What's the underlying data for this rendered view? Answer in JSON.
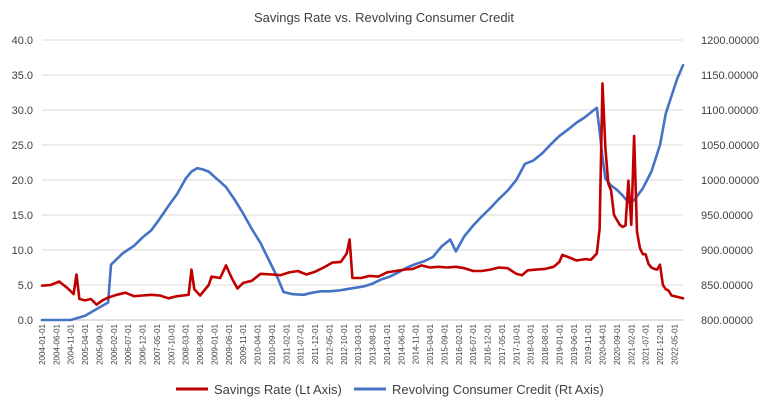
{
  "chart_data": {
    "type": "line",
    "title": "Savings Rate vs. Revolving Consumer Credit",
    "left_axis": {
      "range": [
        0,
        40
      ],
      "ticks": [
        "0.0",
        "5.0",
        "10.0",
        "15.0",
        "20.0",
        "25.0",
        "30.0",
        "35.0",
        "40.0"
      ]
    },
    "right_axis": {
      "range": [
        800,
        1200
      ],
      "ticks": [
        "800.00000",
        "850.00000",
        "900.00000",
        "950.00000",
        "1000.00000",
        "1050.00000",
        "1100.00000",
        "1150.00000",
        "1200.00000"
      ]
    },
    "x_ticks": [
      "2004-01-01",
      "2004-06-01",
      "2004-11-01",
      "2005-04-01",
      "2005-09-01",
      "2006-02-01",
      "2006-07-01",
      "2006-12-01",
      "2007-05-01",
      "2007-10-01",
      "2008-03-01",
      "2008-08-01",
      "2009-01-01",
      "2009-06-01",
      "2009-11-01",
      "2010-04-01",
      "2010-09-01",
      "2011-02-01",
      "2011-07-01",
      "2011-12-01",
      "2012-05-01",
      "2012-10-01",
      "2013-03-01",
      "2013-08-01",
      "2014-01-01",
      "2014-06-01",
      "2014-11-01",
      "2015-04-01",
      "2015-09-01",
      "2016-02-01",
      "2016-07-01",
      "2016-12-01",
      "2017-05-01",
      "2017-10-01",
      "2018-03-01",
      "2018-08-01",
      "2019-01-01",
      "2019-06-01",
      "2019-11-01",
      "2020-04-01",
      "2020-09-01",
      "2021-02-01",
      "2021-07-01",
      "2021-12-01",
      "2022-05-01"
    ],
    "x_start": "2004-01",
    "x_end": "2022-08",
    "grid": "horizontal",
    "legend_position": "bottom",
    "series": [
      {
        "name": "Savings Rate (Lt Axis)",
        "axis": "left",
        "color": "#C00000",
        "points": [
          [
            "2004-01",
            4.9
          ],
          [
            "2004-04",
            5.0
          ],
          [
            "2004-07",
            5.5
          ],
          [
            "2004-10",
            4.5
          ],
          [
            "2004-12",
            3.7
          ],
          [
            "2005-01",
            6.5
          ],
          [
            "2005-02",
            3.0
          ],
          [
            "2005-04",
            2.8
          ],
          [
            "2005-06",
            3.0
          ],
          [
            "2005-08",
            2.2
          ],
          [
            "2005-10",
            2.8
          ],
          [
            "2005-12",
            3.2
          ],
          [
            "2006-03",
            3.6
          ],
          [
            "2006-06",
            3.9
          ],
          [
            "2006-09",
            3.4
          ],
          [
            "2006-12",
            3.5
          ],
          [
            "2007-03",
            3.6
          ],
          [
            "2007-06",
            3.5
          ],
          [
            "2007-09",
            3.1
          ],
          [
            "2007-12",
            3.4
          ],
          [
            "2008-02",
            3.5
          ],
          [
            "2008-04",
            3.6
          ],
          [
            "2008-05",
            7.2
          ],
          [
            "2008-06",
            4.4
          ],
          [
            "2008-08",
            3.5
          ],
          [
            "2008-11",
            5.0
          ],
          [
            "2008-12",
            6.2
          ],
          [
            "2009-03",
            6.0
          ],
          [
            "2009-05",
            7.8
          ],
          [
            "2009-07",
            6.0
          ],
          [
            "2009-09",
            4.5
          ],
          [
            "2009-11",
            5.3
          ],
          [
            "2010-02",
            5.6
          ],
          [
            "2010-05",
            6.6
          ],
          [
            "2010-09",
            6.5
          ],
          [
            "2010-12",
            6.4
          ],
          [
            "2011-03",
            6.8
          ],
          [
            "2011-06",
            7.0
          ],
          [
            "2011-09",
            6.5
          ],
          [
            "2011-12",
            6.9
          ],
          [
            "2012-03",
            7.5
          ],
          [
            "2012-06",
            8.2
          ],
          [
            "2012-09",
            8.3
          ],
          [
            "2012-11",
            9.5
          ],
          [
            "2012-12",
            11.5
          ],
          [
            "2013-01",
            6.0
          ],
          [
            "2013-04",
            6.0
          ],
          [
            "2013-07",
            6.3
          ],
          [
            "2013-10",
            6.2
          ],
          [
            "2014-01",
            6.8
          ],
          [
            "2014-04",
            7.0
          ],
          [
            "2014-07",
            7.2
          ],
          [
            "2014-10",
            7.3
          ],
          [
            "2015-01",
            7.8
          ],
          [
            "2015-04",
            7.5
          ],
          [
            "2015-07",
            7.6
          ],
          [
            "2015-10",
            7.5
          ],
          [
            "2016-01",
            7.6
          ],
          [
            "2016-04",
            7.4
          ],
          [
            "2016-07",
            7.0
          ],
          [
            "2016-10",
            7.0
          ],
          [
            "2017-01",
            7.2
          ],
          [
            "2017-04",
            7.5
          ],
          [
            "2017-07",
            7.4
          ],
          [
            "2017-10",
            6.6
          ],
          [
            "2017-12",
            6.4
          ],
          [
            "2018-02",
            7.1
          ],
          [
            "2018-05",
            7.2
          ],
          [
            "2018-08",
            7.3
          ],
          [
            "2018-11",
            7.6
          ],
          [
            "2019-01",
            8.3
          ],
          [
            "2019-02",
            9.3
          ],
          [
            "2019-04",
            9.0
          ],
          [
            "2019-07",
            8.5
          ],
          [
            "2019-10",
            8.7
          ],
          [
            "2019-12",
            8.6
          ],
          [
            "2020-02",
            9.5
          ],
          [
            "2020-03",
            13.0
          ],
          [
            "2020-04",
            33.8
          ],
          [
            "2020-05",
            24.5
          ],
          [
            "2020-06",
            19.5
          ],
          [
            "2020-07",
            18.5
          ],
          [
            "2020-08",
            15.0
          ],
          [
            "2020-09",
            14.3
          ],
          [
            "2020-10",
            13.6
          ],
          [
            "2020-11",
            13.3
          ],
          [
            "2020-12",
            13.5
          ],
          [
            "2021-01",
            19.9
          ],
          [
            "2021-02",
            13.6
          ],
          [
            "2021-03",
            26.3
          ],
          [
            "2021-04",
            12.6
          ],
          [
            "2021-05",
            10.3
          ],
          [
            "2021-06",
            9.4
          ],
          [
            "2021-07",
            9.4
          ],
          [
            "2021-08",
            8.0
          ],
          [
            "2021-09",
            7.5
          ],
          [
            "2021-10",
            7.3
          ],
          [
            "2021-11",
            7.2
          ],
          [
            "2021-12",
            7.9
          ],
          [
            "2022-01",
            5.0
          ],
          [
            "2022-02",
            4.4
          ],
          [
            "2022-03",
            4.2
          ],
          [
            "2022-04",
            3.5
          ],
          [
            "2022-05",
            3.4
          ],
          [
            "2022-06",
            3.3
          ],
          [
            "2022-07",
            3.2
          ],
          [
            "2022-08",
            3.1
          ]
        ]
      },
      {
        "name": "Revolving Consumer Credit (Rt Axis)",
        "axis": "right",
        "color": "#4472C4",
        "points": [
          [
            "2004-01",
            793
          ],
          [
            "2004-06",
            796
          ],
          [
            "2004-11",
            799
          ],
          [
            "2005-04",
            806
          ],
          [
            "2005-09",
            818
          ],
          [
            "2005-12",
            825
          ],
          [
            "2006-01",
            879
          ],
          [
            "2006-05",
            895
          ],
          [
            "2006-09",
            906
          ],
          [
            "2006-12",
            918
          ],
          [
            "2007-03",
            928
          ],
          [
            "2007-06",
            945
          ],
          [
            "2007-09",
            963
          ],
          [
            "2007-12",
            980
          ],
          [
            "2008-03",
            1002
          ],
          [
            "2008-05",
            1012
          ],
          [
            "2008-07",
            1017
          ],
          [
            "2008-09",
            1015
          ],
          [
            "2008-11",
            1012
          ],
          [
            "2009-02",
            1001
          ],
          [
            "2009-05",
            990
          ],
          [
            "2009-08",
            972
          ],
          [
            "2009-11",
            952
          ],
          [
            "2010-02",
            930
          ],
          [
            "2010-05",
            910
          ],
          [
            "2010-08",
            885
          ],
          [
            "2010-11",
            860
          ],
          [
            "2011-01",
            840
          ],
          [
            "2011-04",
            837
          ],
          [
            "2011-08",
            836
          ],
          [
            "2011-11",
            839
          ],
          [
            "2012-02",
            841
          ],
          [
            "2012-05",
            841
          ],
          [
            "2012-08",
            842
          ],
          [
            "2012-11",
            844
          ],
          [
            "2013-02",
            846
          ],
          [
            "2013-05",
            848
          ],
          [
            "2013-08",
            852
          ],
          [
            "2013-11",
            858
          ],
          [
            "2014-02",
            862
          ],
          [
            "2014-05",
            868
          ],
          [
            "2014-08",
            875
          ],
          [
            "2014-11",
            880
          ],
          [
            "2015-02",
            884
          ],
          [
            "2015-05",
            890
          ],
          [
            "2015-08",
            905
          ],
          [
            "2015-11",
            915
          ],
          [
            "2016-01",
            898
          ],
          [
            "2016-04",
            920
          ],
          [
            "2016-07",
            935
          ],
          [
            "2016-10",
            948
          ],
          [
            "2017-01",
            960
          ],
          [
            "2017-04",
            973
          ],
          [
            "2017-07",
            985
          ],
          [
            "2017-10",
            1000
          ],
          [
            "2018-01",
            1023
          ],
          [
            "2018-04",
            1028
          ],
          [
            "2018-07",
            1038
          ],
          [
            "2018-10",
            1051
          ],
          [
            "2019-01",
            1063
          ],
          [
            "2019-04",
            1072
          ],
          [
            "2019-07",
            1082
          ],
          [
            "2019-10",
            1090
          ],
          [
            "2020-01",
            1100
          ],
          [
            "2020-02",
            1103
          ],
          [
            "2020-03",
            1070
          ],
          [
            "2020-04",
            1032
          ],
          [
            "2020-05",
            1002
          ],
          [
            "2020-07",
            992
          ],
          [
            "2020-09",
            986
          ],
          [
            "2020-11",
            978
          ],
          [
            "2021-01",
            968
          ],
          [
            "2021-03",
            971
          ],
          [
            "2021-06",
            988
          ],
          [
            "2021-09",
            1012
          ],
          [
            "2021-12",
            1050
          ],
          [
            "2022-02",
            1095
          ],
          [
            "2022-04",
            1120
          ],
          [
            "2022-06",
            1145
          ],
          [
            "2022-08",
            1164
          ]
        ]
      }
    ]
  }
}
